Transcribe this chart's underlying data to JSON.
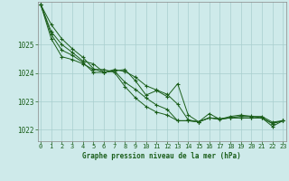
{
  "title": "Graphe pression niveau de la mer (hPa)",
  "bg_color": "#ceeaea",
  "grid_color": "#a8cece",
  "line_color": "#1a5e1a",
  "marker_color": "#1a5e1a",
  "xlim": [
    -0.3,
    23.3
  ],
  "ylim": [
    1021.6,
    1026.5
  ],
  "yticks": [
    1022,
    1023,
    1024,
    1025
  ],
  "xticks": [
    0,
    1,
    2,
    3,
    4,
    5,
    6,
    7,
    8,
    9,
    10,
    11,
    12,
    13,
    14,
    15,
    16,
    17,
    18,
    19,
    20,
    21,
    22,
    23
  ],
  "series": [
    [
      1026.4,
      1025.7,
      1025.2,
      1024.85,
      1024.55,
      1024.15,
      1024.02,
      1024.12,
      1024.05,
      1023.85,
      1023.55,
      1023.4,
      1023.25,
      1022.9,
      1022.35,
      1022.28,
      1022.42,
      1022.38,
      1022.42,
      1022.48,
      1022.48,
      1022.42,
      1022.12,
      1022.32
    ],
    [
      1026.4,
      1025.45,
      1025.0,
      1024.72,
      1024.42,
      1024.32,
      1024.02,
      1024.07,
      1024.12,
      1023.72,
      1023.22,
      1023.38,
      1023.17,
      1023.62,
      1022.52,
      1022.28,
      1022.57,
      1022.37,
      1022.47,
      1022.52,
      1022.47,
      1022.47,
      1022.27,
      1022.32
    ],
    [
      1026.4,
      1025.35,
      1024.8,
      1024.62,
      1024.37,
      1024.02,
      1024.02,
      1024.07,
      1023.67,
      1023.42,
      1023.12,
      1022.87,
      1022.72,
      1022.32,
      1022.32,
      1022.28,
      1022.42,
      1022.38,
      1022.42,
      1022.42,
      1022.42,
      1022.42,
      1022.22,
      1022.32
    ],
    [
      1026.4,
      1025.2,
      1024.57,
      1024.47,
      1024.32,
      1024.12,
      1024.12,
      1024.02,
      1023.52,
      1023.12,
      1022.82,
      1022.62,
      1022.52,
      1022.32,
      1022.32,
      1022.28,
      1022.42,
      1022.38,
      1022.42,
      1022.42,
      1022.42,
      1022.42,
      1022.22,
      1022.32
    ]
  ]
}
